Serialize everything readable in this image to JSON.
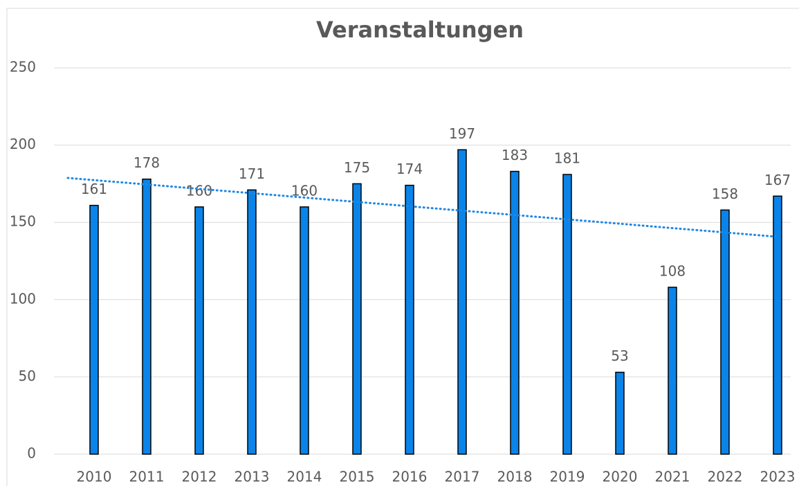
{
  "chart_data": {
    "type": "bar",
    "title": "Veranstaltungen",
    "categories": [
      "2010",
      "2011",
      "2012",
      "2013",
      "2014",
      "2015",
      "2016",
      "2017",
      "2018",
      "2019",
      "2020",
      "2021",
      "2022",
      "2023"
    ],
    "values": [
      161,
      178,
      160,
      171,
      160,
      175,
      174,
      197,
      183,
      181,
      53,
      108,
      158,
      167
    ],
    "color": "#0a84e8",
    "trendline": true,
    "trendline_color": "#1e88e5",
    "ylim": [
      0,
      250
    ],
    "yticks": [
      0,
      50,
      100,
      150,
      200,
      250
    ],
    "grid": true
  }
}
